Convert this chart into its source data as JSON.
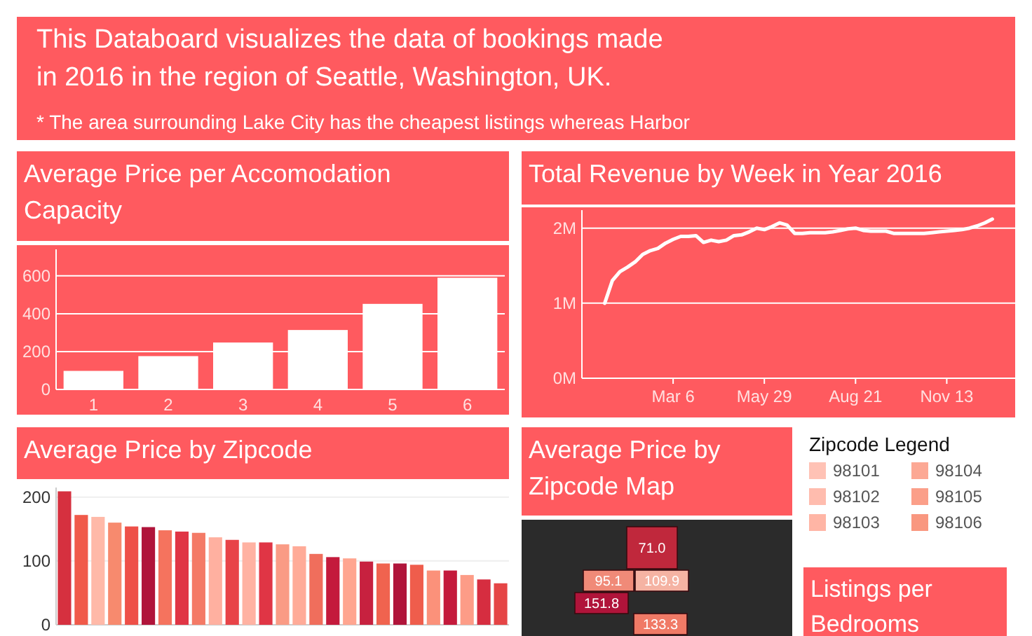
{
  "chart_data": [
    {
      "type": "other",
      "annotations": [
        "This Databoard visualizes the data of bookings made",
        "in 2016 in the region of Seattle, Washington, UK.",
        "* The area surrounding Lake City has the cheapest listings whereas Harbor"
      ]
    },
    {
      "type": "bar",
      "title": "Average Price per Accomodation Capacity",
      "categories": [
        "1",
        "2",
        "3",
        "4",
        "5",
        "6"
      ],
      "values": [
        98,
        176,
        248,
        314,
        452,
        590
      ],
      "color": "#ffffff",
      "ylim": [
        0,
        740
      ],
      "yticks": [
        0,
        200,
        400,
        600
      ],
      "grid": "y"
    },
    {
      "type": "line",
      "title": "Total Revenue by Week in Year 2016",
      "x": [
        "2016-01-03",
        "2016-01-10",
        "2016-01-17",
        "2016-01-24",
        "2016-01-31",
        "2016-02-07",
        "2016-02-14",
        "2016-02-21",
        "2016-02-28",
        "2016-03-06",
        "2016-03-13",
        "2016-03-20",
        "2016-03-27",
        "2016-04-03",
        "2016-04-10",
        "2016-04-17",
        "2016-04-24",
        "2016-05-01",
        "2016-05-08",
        "2016-05-15",
        "2016-05-22",
        "2016-05-29",
        "2016-06-05",
        "2016-06-12",
        "2016-06-19",
        "2016-06-26",
        "2016-07-03",
        "2016-07-10",
        "2016-07-17",
        "2016-07-24",
        "2016-07-31",
        "2016-08-07",
        "2016-08-14",
        "2016-08-21",
        "2016-08-28",
        "2016-09-04",
        "2016-09-11",
        "2016-09-18",
        "2016-09-25",
        "2016-10-02",
        "2016-10-09",
        "2016-10-16",
        "2016-10-23",
        "2016-10-30",
        "2016-11-06",
        "2016-11-13",
        "2016-11-20",
        "2016-11-27",
        "2016-12-04",
        "2016-12-11",
        "2016-12-18",
        "2016-12-25"
      ],
      "series": [
        {
          "color": "#ffffff",
          "values": [
            1.0,
            1.3,
            1.42,
            1.48,
            1.55,
            1.65,
            1.7,
            1.73,
            1.8,
            1.85,
            1.89,
            1.89,
            1.9,
            1.81,
            1.84,
            1.82,
            1.84,
            1.9,
            1.91,
            1.95,
            2.0,
            1.98,
            2.02,
            2.07,
            2.04,
            1.93,
            1.93,
            1.94,
            1.94,
            1.94,
            1.95,
            1.97,
            1.99,
            2.0,
            1.97,
            1.96,
            1.96,
            1.96,
            1.93,
            1.93,
            1.93,
            1.93,
            1.93,
            1.94,
            1.95,
            1.96,
            1.97,
            1.98,
            2.0,
            2.03,
            2.07,
            2.12
          ]
        }
      ],
      "xlim": [
        "2015-12-13",
        "2017-01-15"
      ],
      "xticks": [
        {
          "value": "2016-03-06",
          "label": "Mar 6"
        },
        {
          "value": "2016-05-29",
          "label": "May 29"
        },
        {
          "value": "2016-08-21",
          "label": "Aug 21"
        },
        {
          "value": "2016-11-13",
          "label": "Nov 13"
        }
      ],
      "ylim": [
        0,
        2.24
      ],
      "yticks": [
        {
          "value": 0,
          "label": "0M"
        },
        {
          "value": 1,
          "label": "1M"
        },
        {
          "value": 2,
          "label": "2M"
        }
      ],
      "grid": "y"
    },
    {
      "type": "bar",
      "title": "Average Price by Zipcode",
      "categories": [
        null,
        null,
        null,
        null,
        null,
        null,
        null,
        null,
        null,
        null,
        null,
        null,
        null,
        null,
        null,
        null,
        null,
        null,
        null,
        null,
        null,
        null,
        null,
        null,
        null,
        null,
        null
      ],
      "values": [
        209,
        172,
        169,
        160,
        154,
        153,
        148,
        146,
        144,
        137,
        133,
        129,
        129,
        126,
        123,
        111,
        106,
        104,
        99,
        96,
        96,
        94,
        85,
        85,
        78,
        71,
        65
      ],
      "colors": [
        "#d6303f",
        "#f05a4a",
        "#ffb9a8",
        "#f78a6e",
        "#ee5048",
        "#b0143a",
        "#f5735e",
        "#e03545",
        "#f47a66",
        "#ffb0a0",
        "#e84348",
        "#ffb2a2",
        "#e03545",
        "#fa9b85",
        "#ffab98",
        "#f06e5c",
        "#c41a3c",
        "#ffa590",
        "#c7213f",
        "#f0634f",
        "#b0143a",
        "#ef5d4c",
        "#fb917a",
        "#c41a3c",
        "#fd9c87",
        "#d62d40",
        "#e54546"
      ],
      "ylim": [
        0,
        215
      ],
      "yticks": [
        0,
        100,
        200
      ],
      "grid": "y"
    },
    {
      "type": "other",
      "title": "Average Price by Zipcode Map",
      "categories": [
        null,
        null,
        null,
        null,
        null
      ],
      "values": [
        71.0,
        95.1,
        109.9,
        151.8,
        133.3
      ],
      "value_labels": [
        "71.0",
        "95.1",
        "109.9",
        "151.8",
        "133.3"
      ],
      "colors": [
        "#c0283c",
        "#f08a78",
        "#f5b3a3",
        "#b0143a",
        "#f07a66"
      ]
    },
    {
      "type": "other",
      "legend_title": "Zipcode Legend",
      "categories": [
        "98101",
        "98102",
        "98103",
        "98104",
        "98105",
        "98106"
      ],
      "colors": [
        "#ffc2b5",
        "#ffbcae",
        "#ffb5a5",
        "#fca894",
        "#fb9f89",
        "#f9977f"
      ]
    },
    {
      "type": "other",
      "title": "Listings per Bedrooms"
    }
  ]
}
